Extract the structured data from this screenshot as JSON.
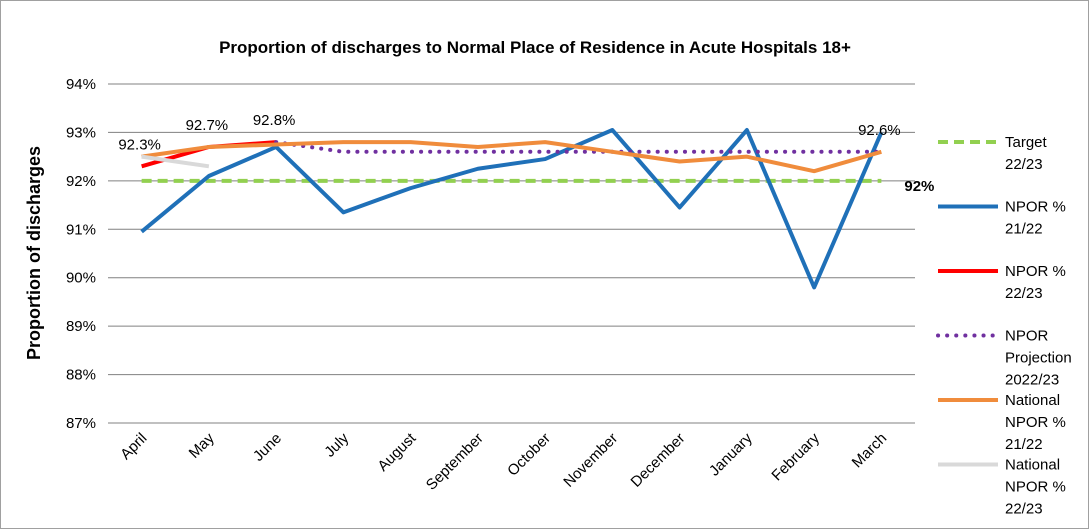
{
  "chart_data": {
    "type": "line",
    "title": "Proportion of discharges to Normal Place of Residence in Acute Hospitals 18+",
    "y_label": "Proportion of discharges",
    "categories": [
      "April",
      "May",
      "June",
      "July",
      "August",
      "September",
      "October",
      "November",
      "December",
      "January",
      "February",
      "March"
    ],
    "ylim": [
      87,
      94
    ],
    "yticks": [
      {
        "value": 87,
        "label": "87%"
      },
      {
        "value": 88,
        "label": "88%"
      },
      {
        "value": 89,
        "label": "89%"
      },
      {
        "value": 90,
        "label": "90%"
      },
      {
        "value": 91,
        "label": "91%"
      },
      {
        "value": 92,
        "label": "92%"
      },
      {
        "value": 93,
        "label": "93%"
      },
      {
        "value": 94,
        "label": "94%"
      }
    ],
    "grid": true,
    "legend": "right",
    "series": [
      {
        "name": "Target 22/23",
        "color": "#92d050",
        "style": "dashed",
        "values": [
          92,
          92,
          92,
          92,
          92,
          92,
          92,
          92,
          92,
          92,
          92,
          92
        ],
        "value_labels": [
          null,
          null,
          null,
          null,
          null,
          null,
          null,
          null,
          null,
          null,
          null,
          "92%"
        ]
      },
      {
        "name": "NPOR % 21/22",
        "color": "#1f70b8",
        "style": "solid",
        "values": [
          90.95,
          92.1,
          92.7,
          91.35,
          91.85,
          92.25,
          92.45,
          93.05,
          91.45,
          93.05,
          89.8,
          93.0
        ]
      },
      {
        "name": "NPOR % 22/23",
        "color": "#ff0000",
        "style": "solid",
        "values": [
          92.3,
          92.7,
          92.8,
          null,
          null,
          null,
          null,
          null,
          null,
          null,
          null,
          null
        ],
        "value_labels": [
          "92.3%",
          "92.7%",
          "92.8%",
          null,
          null,
          null,
          null,
          null,
          null,
          null,
          null,
          null
        ]
      },
      {
        "name": "NPOR Projection 2022/23",
        "color": "#7030a0",
        "style": "dotted",
        "values": [
          null,
          null,
          92.8,
          92.6,
          92.6,
          92.6,
          92.6,
          92.6,
          92.6,
          92.6,
          92.6,
          92.6
        ],
        "value_labels": [
          null,
          null,
          null,
          null,
          null,
          null,
          null,
          null,
          null,
          null,
          null,
          "92.6%"
        ]
      },
      {
        "name": "National NPOR % 21/22",
        "color": "#f08c3c",
        "style": "solid",
        "values": [
          92.5,
          92.7,
          92.75,
          92.8,
          92.8,
          92.7,
          92.8,
          92.6,
          92.4,
          92.5,
          92.2,
          92.6
        ]
      },
      {
        "name": "National NPOR % 22/23",
        "color": "#d9d9d9",
        "style": "solid",
        "values": [
          92.5,
          92.3,
          null,
          null,
          null,
          null,
          null,
          null,
          null,
          null,
          null,
          null
        ]
      }
    ]
  }
}
